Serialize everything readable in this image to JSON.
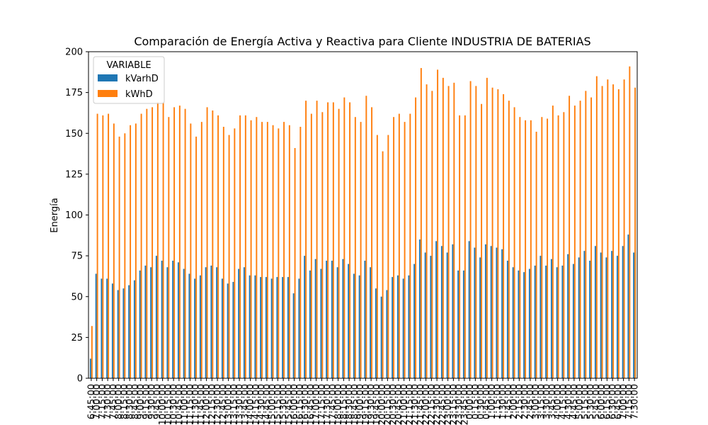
{
  "chart_data": {
    "type": "bar",
    "title": "Comparación de Energía Activa y Reactiva para Cliente INDUSTRIA DE BATERIAS",
    "xlabel": "",
    "ylabel": "Energía",
    "ylim": [
      0,
      200
    ],
    "yticks": [
      0,
      25,
      50,
      75,
      100,
      125,
      150,
      175,
      200
    ],
    "grid": false,
    "legend": {
      "title": "VARIABLE",
      "placement": "top-left"
    },
    "categories": [
      "6:45:00",
      "7:00:00",
      "7:15:00",
      "7:30:00",
      "7:45:00",
      "8:00:00",
      "8:15:00",
      "8:30:00",
      "8:45:00",
      "9:00:00",
      "9:15:00",
      "9:30:00",
      "9:45:00",
      "10:00:00",
      "10:15:00",
      "10:30:00",
      "10:45:00",
      "11:00:00",
      "11:15:00",
      "11:30:00",
      "11:45:00",
      "12:00:00",
      "12:15:00",
      "12:30:00",
      "12:45:00",
      "13:00:00",
      "13:15:00",
      "13:30:00",
      "13:45:00",
      "14:00:00",
      "14:15:00",
      "14:30:00",
      "14:45:00",
      "15:00:00",
      "15:15:00",
      "15:30:00",
      "15:45:00",
      "16:00:00",
      "16:15:00",
      "16:30:00",
      "16:45:00",
      "17:00:00",
      "17:15:00",
      "17:30:00",
      "17:45:00",
      "18:00:00",
      "18:15:00",
      "18:30:00",
      "18:45:00",
      "19:00:00",
      "19:15:00",
      "19:30:00",
      "19:45:00",
      "20:00:00",
      "20:15:00",
      "20:30:00",
      "20:45:00",
      "21:00:00",
      "21:15:00",
      "21:30:00",
      "21:45:00",
      "22:00:00",
      "22:15:00",
      "22:30:00",
      "22:45:00",
      "23:00:00",
      "23:15:00",
      "23:30:00",
      "23:45:00",
      "0:00:00",
      "0:15:00",
      "0:30:00",
      "0:45:00",
      "1:00:00",
      "1:15:00",
      "1:30:00",
      "1:45:00",
      "2:00:00",
      "2:15:00",
      "2:30:00",
      "2:45:00",
      "3:00:00",
      "3:15:00",
      "3:30:00",
      "3:45:00",
      "4:00:00",
      "4:15:00",
      "4:30:00",
      "4:45:00",
      "5:00:00",
      "5:15:00",
      "5:30:00",
      "5:45:00",
      "6:00:00",
      "6:15:00",
      "6:30:00",
      "6:45:00",
      "7:00:00",
      "7:15:00",
      "7:30:00"
    ],
    "series": [
      {
        "name": "kVarhD",
        "color": "#1f77b4",
        "values": [
          12,
          64,
          61,
          61,
          58,
          54,
          55,
          57,
          60,
          66,
          69,
          68,
          75,
          72,
          68,
          72,
          71,
          67,
          64,
          61,
          63,
          68,
          69,
          68,
          61,
          58,
          59,
          67,
          68,
          63,
          63,
          62,
          62,
          61,
          62,
          62,
          62,
          52,
          61,
          75,
          66,
          73,
          67,
          72,
          72,
          68,
          73,
          70,
          64,
          63,
          72,
          68,
          55,
          50,
          54,
          62,
          63,
          61,
          63,
          70,
          85,
          77,
          75,
          84,
          81,
          77,
          82,
          66,
          66,
          84,
          80,
          74,
          82,
          81,
          80,
          79,
          72,
          68,
          66,
          65,
          67,
          69,
          75,
          69,
          73,
          68,
          69,
          76,
          70,
          74,
          78,
          72,
          81,
          77,
          74,
          78,
          75,
          81,
          88,
          77
        ]
      },
      {
        "name": "kWhD",
        "color": "#ff7f0e",
        "values": [
          32,
          162,
          161,
          162,
          156,
          148,
          150,
          155,
          156,
          162,
          165,
          166,
          169,
          169,
          160,
          166,
          167,
          165,
          156,
          148,
          157,
          166,
          164,
          161,
          154,
          149,
          153,
          161,
          161,
          158,
          160,
          157,
          157,
          155,
          153,
          157,
          155,
          141,
          154,
          170,
          162,
          170,
          163,
          169,
          169,
          165,
          172,
          169,
          160,
          157,
          173,
          166,
          149,
          139,
          149,
          160,
          162,
          157,
          162,
          172,
          190,
          180,
          176,
          189,
          184,
          179,
          181,
          161,
          161,
          182,
          179,
          168,
          184,
          178,
          177,
          174,
          170,
          166,
          160,
          158,
          158,
          151,
          160,
          159,
          167,
          161,
          163,
          173,
          167,
          170,
          176,
          172,
          185,
          179,
          183,
          180,
          177,
          183,
          191,
          178
        ]
      }
    ]
  }
}
